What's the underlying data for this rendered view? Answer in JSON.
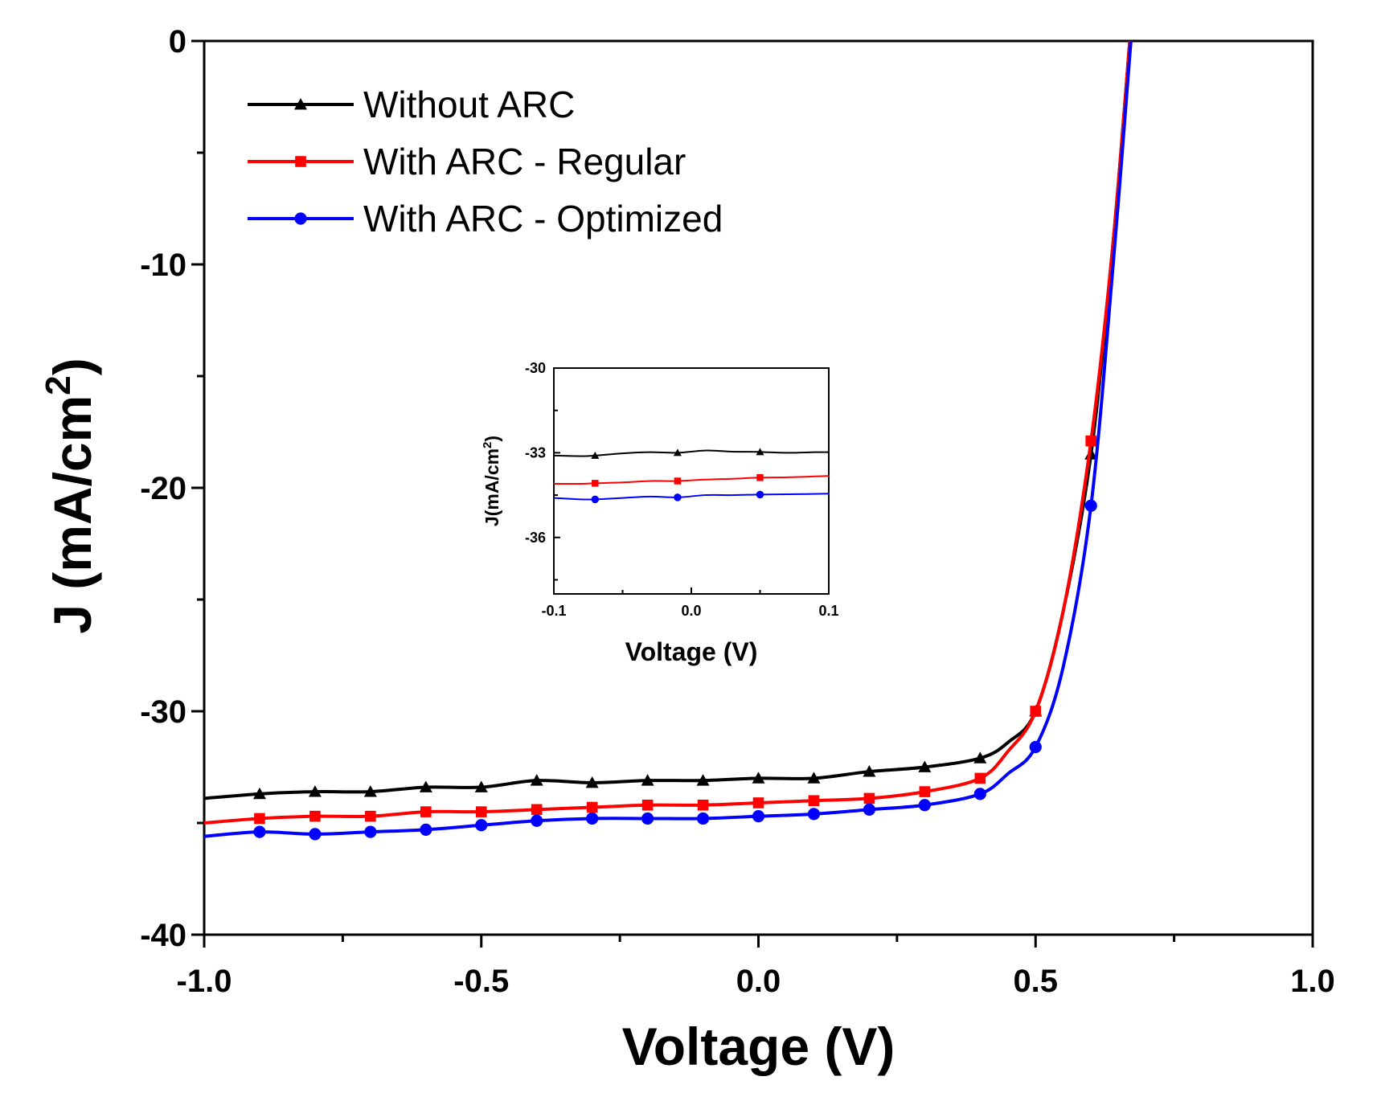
{
  "chart_data": [
    {
      "type": "line",
      "xlabel": "Voltage (V)",
      "ylabel": "J (mA/cm",
      "ylabel_sup": "2",
      "ylabel_close": ")",
      "xlim": [
        -1.0,
        1.0
      ],
      "ylim": [
        -40,
        0
      ],
      "x_ticks": [
        "-1.0",
        "-0.5",
        "0.0",
        "0.5",
        "1.0"
      ],
      "y_ticks": [
        "0",
        "-10",
        "-20",
        "-30",
        "-40"
      ],
      "legend_position": "top-left",
      "grid": false,
      "series": [
        {
          "name": "Without ARC",
          "color": "#000000",
          "marker": "triangle",
          "x": [
            -1.0,
            -0.9,
            -0.8,
            -0.7,
            -0.6,
            -0.5,
            -0.4,
            -0.3,
            -0.2,
            -0.1,
            0.0,
            0.1,
            0.2,
            0.3,
            0.4,
            0.45,
            0.5,
            0.55,
            0.6,
            0.64,
            0.67
          ],
          "y": [
            -33.9,
            -33.7,
            -33.6,
            -33.6,
            -33.4,
            -33.4,
            -33.1,
            -33.2,
            -33.1,
            -33.1,
            -33.0,
            -33.0,
            -32.7,
            -32.5,
            -32.1,
            -31.4,
            -30.0,
            -25.5,
            -18.5,
            -9.0,
            0.0
          ]
        },
        {
          "name": "With ARC - Regular",
          "color": "#ff0000",
          "marker": "square",
          "x": [
            -1.0,
            -0.9,
            -0.8,
            -0.7,
            -0.6,
            -0.5,
            -0.4,
            -0.3,
            -0.2,
            -0.1,
            0.0,
            0.1,
            0.2,
            0.3,
            0.4,
            0.45,
            0.5,
            0.55,
            0.6,
            0.64,
            0.67
          ],
          "y": [
            -35.0,
            -34.8,
            -34.7,
            -34.7,
            -34.5,
            -34.5,
            -34.4,
            -34.3,
            -34.2,
            -34.2,
            -34.1,
            -34.0,
            -33.9,
            -33.6,
            -33.0,
            -31.8,
            -30.0,
            -25.5,
            -17.9,
            -9.0,
            0.0
          ]
        },
        {
          "name": "With ARC - Optimized",
          "color": "#0000ff",
          "marker": "circle",
          "x": [
            -1.0,
            -0.9,
            -0.8,
            -0.7,
            -0.6,
            -0.5,
            -0.4,
            -0.3,
            -0.2,
            -0.1,
            0.0,
            0.1,
            0.2,
            0.3,
            0.4,
            0.45,
            0.5,
            0.55,
            0.6,
            0.64,
            0.672
          ],
          "y": [
            -35.6,
            -35.4,
            -35.5,
            -35.4,
            -35.3,
            -35.1,
            -34.9,
            -34.8,
            -34.8,
            -34.8,
            -34.7,
            -34.6,
            -34.4,
            -34.2,
            -33.7,
            -32.8,
            -31.6,
            -28.0,
            -20.8,
            -10.0,
            0.0
          ]
        }
      ]
    },
    {
      "type": "line",
      "inset": true,
      "xlabel": "Voltage (V)",
      "ylabel": "J(mA/cm",
      "ylabel_sup": "2",
      "ylabel_close": ")",
      "xlim": [
        -0.1,
        0.1
      ],
      "ylim": [
        -38,
        -30
      ],
      "x_ticks": [
        "-0.1",
        "0.0",
        "0.1"
      ],
      "y_ticks": [
        "-30",
        "-33",
        "-36"
      ],
      "series": [
        {
          "name": "Without ARC",
          "color": "#000000",
          "marker": "triangle",
          "x": [
            -0.1,
            -0.08,
            -0.07,
            -0.05,
            -0.03,
            -0.01,
            0.01,
            0.03,
            0.05,
            0.07,
            0.09,
            0.1
          ],
          "y": [
            -33.1,
            -33.12,
            -33.1,
            -33.02,
            -32.98,
            -33.0,
            -32.92,
            -32.96,
            -32.97,
            -33.0,
            -32.98,
            -32.98
          ]
        },
        {
          "name": "With ARC - Regular",
          "color": "#ff0000",
          "marker": "square",
          "x": [
            -0.1,
            -0.08,
            -0.07,
            -0.05,
            -0.03,
            -0.01,
            0.01,
            0.03,
            0.05,
            0.07,
            0.1
          ],
          "y": [
            -34.1,
            -34.1,
            -34.08,
            -34.05,
            -34.0,
            -34.0,
            -33.95,
            -33.92,
            -33.88,
            -33.87,
            -33.82
          ]
        },
        {
          "name": "With ARC - Optimized",
          "color": "#0000ff",
          "marker": "circle",
          "x": [
            -0.1,
            -0.08,
            -0.07,
            -0.05,
            -0.03,
            -0.01,
            0.01,
            0.03,
            0.05,
            0.07,
            0.1
          ],
          "y": [
            -34.6,
            -34.65,
            -34.65,
            -34.6,
            -34.55,
            -34.58,
            -34.5,
            -34.5,
            -34.48,
            -34.47,
            -34.45
          ]
        }
      ]
    }
  ]
}
